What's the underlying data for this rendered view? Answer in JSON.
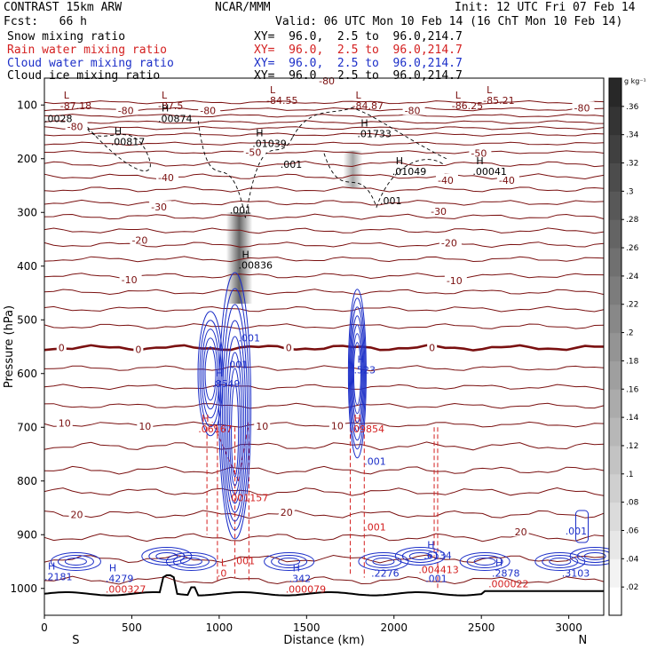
{
  "header": {
    "left_title": "CONTRAST 15km ARW",
    "center_title": "NCAR/MMM",
    "init": "Init: 12 UTC Fri 07 Feb 14",
    "fcst": "Fcst:   66 h",
    "valid": "Valid: 06 UTC Mon 10 Feb 14 (16 ChT Mon 10 Feb 14)",
    "fields": [
      {
        "name": "Snow mixing ratio",
        "xy": "XY=  96.0,  2.5 to  96.0,214.7",
        "color": "#000000"
      },
      {
        "name": "Rain water mixing ratio",
        "xy": "XY=  96.0,  2.5 to  96.0,214.7",
        "color": "#d42020"
      },
      {
        "name": "Cloud water mixing ratio",
        "xy": "XY=  96.0,  2.5 to  96.0,214.7",
        "color": "#1c2fc8"
      },
      {
        "name": "Cloud ice mixing ratio",
        "xy": "XY=  96.0,  2.5 to  96.0,214.7",
        "color": "#000000"
      }
    ]
  },
  "chart_data": {
    "type": "cross-section",
    "xlabel": "Distance (km)",
    "ylabel": "Pressure (hPa)",
    "xlim": [
      0,
      3200
    ],
    "ylim": [
      1050,
      50
    ],
    "x_ticks": [
      "0",
      "500",
      "1000",
      "1500",
      "2000",
      "2500",
      "3000"
    ],
    "y_ticks": [
      "100",
      "200",
      "300",
      "400",
      "500",
      "600",
      "700",
      "800",
      "900",
      "1000"
    ],
    "south_label": "S",
    "north_label": "N",
    "colorbar": {
      "unit": "g kg⁻¹",
      "ticks": [
        ".02",
        ".04",
        ".06",
        ".08",
        ".1",
        ".12",
        ".14",
        ".16",
        ".18",
        ".2",
        ".22",
        ".24",
        ".26",
        ".28",
        ".3",
        ".32",
        ".34",
        ".36"
      ],
      "range": [
        0,
        0.38
      ]
    },
    "temperature_contours": {
      "color": "#7a1010",
      "labels": [
        {
          "x": 130,
          "p": 140,
          "t": "-80"
        },
        {
          "x": 420,
          "p": 110,
          "t": "-80"
        },
        {
          "x": 890,
          "p": 110,
          "t": "-80"
        },
        {
          "x": 1570,
          "p": 55,
          "t": "-80"
        },
        {
          "x": 2060,
          "p": 110,
          "t": "-80"
        },
        {
          "x": 3030,
          "p": 105,
          "t": "-80"
        },
        {
          "x": 1150,
          "p": 188,
          "t": "-50"
        },
        {
          "x": 2440,
          "p": 190,
          "t": "-50"
        },
        {
          "x": 650,
          "p": 235,
          "t": "-40"
        },
        {
          "x": 2250,
          "p": 240,
          "t": "-40"
        },
        {
          "x": 2600,
          "p": 240,
          "t": "-40"
        },
        {
          "x": 610,
          "p": 290,
          "t": "-30"
        },
        {
          "x": 2210,
          "p": 298,
          "t": "-30"
        },
        {
          "x": 500,
          "p": 352,
          "t": "-20"
        },
        {
          "x": 2270,
          "p": 357,
          "t": "-20"
        },
        {
          "x": 440,
          "p": 425,
          "t": "-10"
        },
        {
          "x": 2300,
          "p": 427,
          "t": "-10"
        },
        {
          "x": 80,
          "p": 552,
          "t": "0"
        },
        {
          "x": 520,
          "p": 555,
          "t": "0"
        },
        {
          "x": 1380,
          "p": 552,
          "t": "0"
        },
        {
          "x": 2200,
          "p": 552,
          "t": "0"
        },
        {
          "x": 80,
          "p": 692,
          "t": "10"
        },
        {
          "x": 540,
          "p": 698,
          "t": "10"
        },
        {
          "x": 1210,
          "p": 698,
          "t": "10"
        },
        {
          "x": 1640,
          "p": 697,
          "t": "10"
        },
        {
          "x": 150,
          "p": 862,
          "t": "20"
        },
        {
          "x": 1350,
          "p": 858,
          "t": "20"
        },
        {
          "x": 2690,
          "p": 895,
          "t": "20"
        }
      ]
    },
    "extrema_labels": [
      {
        "x": 90,
        "p": 88,
        "t": "L",
        "v": "-87.18",
        "color": "#7a1010"
      },
      {
        "x": 650,
        "p": 88,
        "t": "L",
        "v": "-87.5",
        "color": "#7a1010"
      },
      {
        "x": 1270,
        "p": 78,
        "t": "L",
        "v": "-84.55",
        "color": "#7a1010"
      },
      {
        "x": 1760,
        "p": 88,
        "t": "L",
        "v": "-84.87",
        "color": "#7a1010"
      },
      {
        "x": 2330,
        "p": 88,
        "t": "L",
        "v": "-86.25",
        "color": "#7a1010"
      },
      {
        "x": 2510,
        "p": 78,
        "t": "L",
        "v": "-85.21",
        "color": "#7a1010"
      },
      {
        "x": 0,
        "p": 112,
        "t": "",
        "v": ".0028",
        "color": "#000000"
      },
      {
        "x": 650,
        "p": 112,
        "t": "H",
        "v": ".00874",
        "color": "#000000"
      },
      {
        "x": 380,
        "p": 155,
        "t": "H",
        "v": ".00817",
        "color": "#000000"
      },
      {
        "x": 1190,
        "p": 158,
        "t": "H",
        "v": ".01039",
        "color": "#000000"
      },
      {
        "x": 1790,
        "p": 140,
        "t": "H",
        "v": ".01733",
        "color": "#000000"
      },
      {
        "x": 1990,
        "p": 210,
        "t": "H",
        "v": ".01049",
        "color": "#000000"
      },
      {
        "x": 2450,
        "p": 210,
        "t": "H",
        "v": ".00041",
        "color": "#000000"
      },
      {
        "x": 1350,
        "p": 197,
        "t": "",
        "v": ".001",
        "color": "#000000"
      },
      {
        "x": 1920,
        "p": 265,
        "t": "",
        "v": ".001",
        "color": "#000000"
      },
      {
        "x": 1060,
        "p": 282,
        "t": "",
        "v": ".001",
        "color": "#000000"
      },
      {
        "x": 1110,
        "p": 385,
        "t": "H",
        "v": ".00836",
        "color": "#000000"
      },
      {
        "x": 1110,
        "p": 520,
        "t": "",
        "v": ".001",
        "color": "#1c2fc8"
      },
      {
        "x": 1040,
        "p": 570,
        "t": "",
        "v": ".001",
        "color": "#1c2fc8"
      },
      {
        "x": 960,
        "p": 605,
        "t": "H",
        "v": ".8549",
        "color": "#1c2fc8"
      },
      {
        "x": 1770,
        "p": 580,
        "t": "H",
        "v": ".523",
        "color": "#1c2fc8"
      },
      {
        "x": 880,
        "p": 690,
        "t": "H",
        "v": ".06167",
        "color": "#d42020"
      },
      {
        "x": 1750,
        "p": 690,
        "t": "H",
        "v": ".09854",
        "color": "#d42020"
      },
      {
        "x": 1830,
        "p": 750,
        "t": "",
        "v": ".001",
        "color": "#1c2fc8"
      },
      {
        "x": 1050,
        "p": 818,
        "t": "",
        "v": ".001157",
        "color": "#d42020"
      },
      {
        "x": 1830,
        "p": 872,
        "t": "",
        "v": ".001",
        "color": "#d42020"
      },
      {
        "x": 1080,
        "p": 935,
        "t": "",
        "v": ".001",
        "color": "#d42020"
      },
      {
        "x": 990,
        "p": 958,
        "t": "L",
        "v": ".0",
        "color": "#d42020"
      },
      {
        "x": 0,
        "p": 965,
        "t": "H",
        "v": ".2181",
        "color": "#1c2fc8"
      },
      {
        "x": 350,
        "p": 968,
        "t": "H",
        "v": ".4279",
        "color": "#1c2fc8"
      },
      {
        "x": 350,
        "p": 988,
        "t": "",
        "v": ".000327",
        "color": "#d42020"
      },
      {
        "x": 1400,
        "p": 968,
        "t": "H",
        "v": ".342",
        "color": "#1c2fc8"
      },
      {
        "x": 1380,
        "p": 988,
        "t": "",
        "v": ".000079",
        "color": "#d42020"
      },
      {
        "x": 1870,
        "p": 958,
        "t": "",
        "v": ".2276",
        "color": "#1c2fc8"
      },
      {
        "x": 2170,
        "p": 925,
        "t": "H",
        "v": ".6134",
        "color": "#1c2fc8"
      },
      {
        "x": 2140,
        "p": 952,
        "t": "",
        "v": ".004413",
        "color": "#d42020"
      },
      {
        "x": 2180,
        "p": 968,
        "t": "",
        "v": ".001",
        "color": "#1c2fc8"
      },
      {
        "x": 2560,
        "p": 958,
        "t": "H",
        "v": ".2878",
        "color": "#1c2fc8"
      },
      {
        "x": 2540,
        "p": 978,
        "t": "",
        "v": ".000022",
        "color": "#d42020"
      },
      {
        "x": 2960,
        "p": 958,
        "t": "",
        "v": ".3103",
        "color": "#1c2fc8"
      },
      {
        "x": 2980,
        "p": 880,
        "t": "",
        "v": ".001",
        "color": "#1c2fc8"
      }
    ]
  }
}
